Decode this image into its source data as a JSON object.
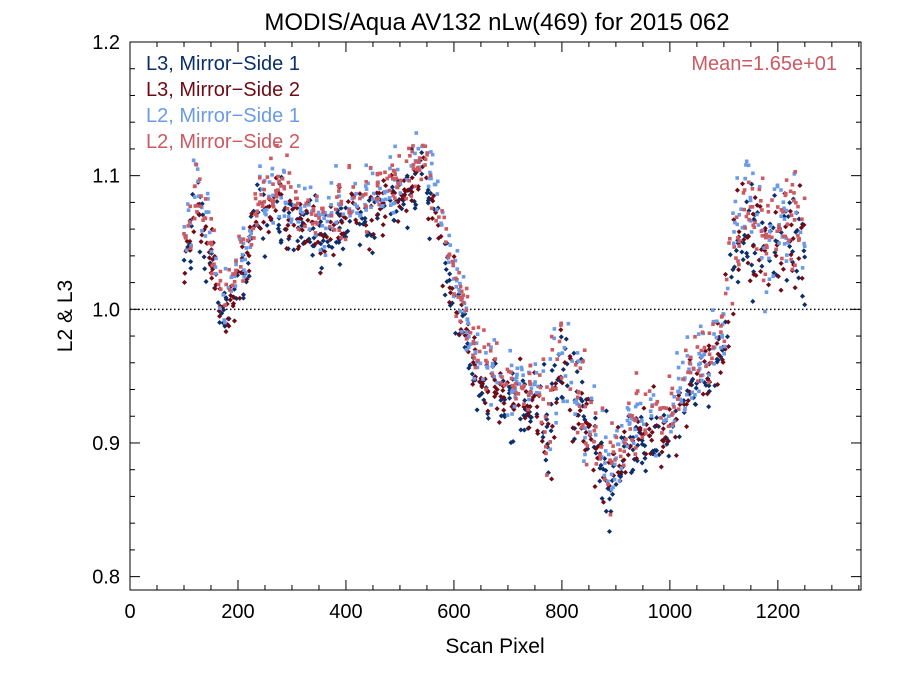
{
  "chart_data": {
    "type": "scatter",
    "title": "MODIS/Aqua AV132 nLw(469) for 2015 062",
    "xlabel": "Scan Pixel",
    "ylabel": "L2 & L3",
    "xlim": [
      0,
      1354
    ],
    "ylim": [
      0.79,
      1.2
    ],
    "xticks": [
      "0",
      "200",
      "400",
      "600",
      "800",
      "1000",
      "1200"
    ],
    "yticks": [
      "0.8",
      "0.9",
      "1.0",
      "1.1",
      "1.2"
    ],
    "reference_line": 1.0,
    "annotation": "Mean=1.65e+01",
    "legend_position": "top-left",
    "series": [
      {
        "name": "L3, Mirror−Side 1",
        "color": "#0b2f6b",
        "offset": -0.008
      },
      {
        "name": "L3, Mirror−Side 2",
        "color": "#6e0b16",
        "offset": -0.005
      },
      {
        "name": "L2, Mirror−Side 1",
        "color": "#6b9be6",
        "offset": 0.008
      },
      {
        "name": "L2, Mirror−Side 2",
        "color": "#cc5a62",
        "offset": 0.01
      }
    ],
    "trend": {
      "x": [
        100,
        110,
        125,
        140,
        155,
        170,
        185,
        200,
        220,
        240,
        260,
        280,
        300,
        330,
        360,
        390,
        420,
        450,
        480,
        510,
        530,
        545,
        560,
        580,
        600,
        620,
        640,
        660,
        680,
        700,
        720,
        740,
        760,
        775,
        790,
        800,
        815,
        830,
        850,
        870,
        885,
        900,
        920,
        940,
        960,
        980,
        1000,
        1020,
        1040,
        1060,
        1080,
        1100,
        1110,
        1120,
        1140,
        1160,
        1180,
        1200,
        1220,
        1240,
        1250
      ],
      "y": [
        1.045,
        1.06,
        1.085,
        1.06,
        1.03,
        1.005,
        1.008,
        1.02,
        1.05,
        1.075,
        1.085,
        1.08,
        1.07,
        1.065,
        1.06,
        1.07,
        1.075,
        1.08,
        1.085,
        1.09,
        1.1,
        1.105,
        1.085,
        1.05,
        1.02,
        0.99,
        0.96,
        0.95,
        0.945,
        0.94,
        0.935,
        0.935,
        0.93,
        0.91,
        0.96,
        0.97,
        0.95,
        0.93,
        0.91,
        0.89,
        0.88,
        0.885,
        0.9,
        0.91,
        0.915,
        0.91,
        0.915,
        0.93,
        0.945,
        0.955,
        0.965,
        0.985,
        1.02,
        1.06,
        1.065,
        1.055,
        1.05,
        1.055,
        1.06,
        1.06,
        1.04
      ]
    },
    "x_range_points": [
      100,
      1250
    ],
    "points_per_series": 480
  }
}
